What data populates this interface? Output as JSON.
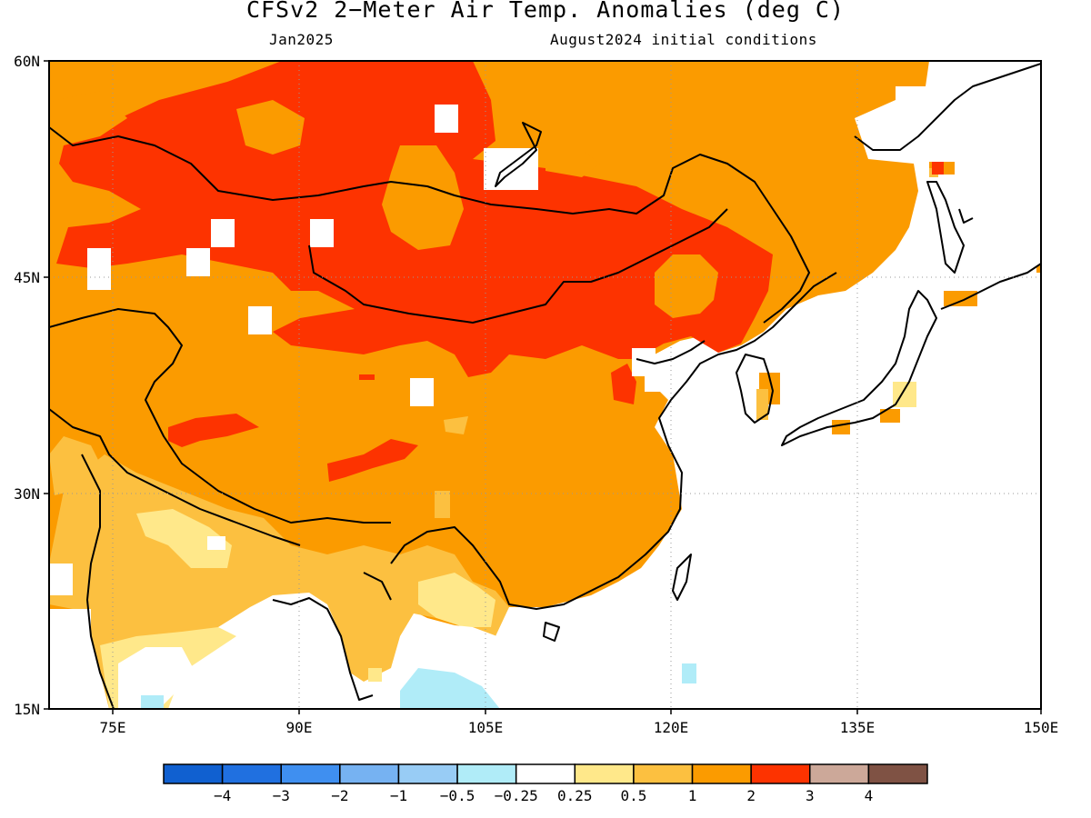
{
  "header": {
    "title": "CFSv2 2−Meter Air Temp. Anomalies (deg C)",
    "valid_month": "Jan2025",
    "initial_conditions": "August2024 initial conditions"
  },
  "axes": {
    "lat_labels": [
      "60N",
      "45N",
      "30N",
      "15N"
    ],
    "lon_labels": [
      "75E",
      "90E",
      "105E",
      "120E",
      "135E",
      "150E"
    ]
  },
  "legend": {
    "ticks": [
      "−4",
      "−3",
      "−2",
      "−1",
      "−0.5",
      "−0.25",
      "0.25",
      "0.5",
      "1",
      "2",
      "3",
      "4"
    ],
    "colors": [
      "#1060d0",
      "#2070e0",
      "#3f8ff0",
      "#76b2f2",
      "#98ccf5",
      "#b0ecf8",
      "#ffffff",
      "#ffe88a",
      "#fcc040",
      "#fb9b00",
      "#fd3300",
      "#cca899",
      "#7f5244"
    ]
  },
  "colors": {
    "anom_05_1": "#fcc040",
    "anom_1_2": "#fb9b00",
    "anom_2_3": "#fd3300",
    "anom_025_05": "#ffe88a",
    "anom_m05_m025": "#b0ecf8"
  }
}
